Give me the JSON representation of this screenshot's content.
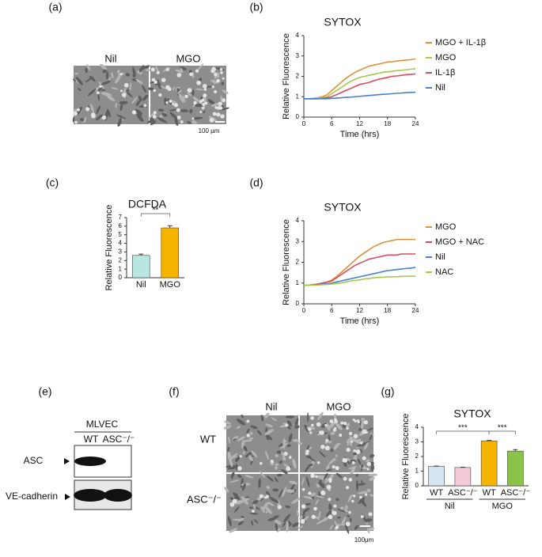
{
  "panel_a": {
    "label": "(a)",
    "columns": [
      "Nil",
      "MGO"
    ],
    "scale_bar": "100 µm"
  },
  "panel_e": {
    "label": "(e)",
    "cell": "MLVEC",
    "lanes": [
      "WT",
      "ASC⁻/⁻"
    ],
    "bands": [
      "ASC",
      "VE-cadherin"
    ]
  },
  "panel_f": {
    "label": "(f)",
    "columns": [
      "Nil",
      "MGO"
    ],
    "rows": [
      "WT",
      "ASC⁻/⁻"
    ],
    "scale_bar": "100μm"
  },
  "chart_data": [
    {
      "type": "line",
      "panel_label": "(b)",
      "title": "SYTOX",
      "xlabel": "Time (hrs)",
      "ylabel": "Relative Fluorescence",
      "x": [
        0,
        1,
        2,
        3,
        4,
        5,
        6,
        7,
        8,
        9,
        10,
        11,
        12,
        13,
        14,
        15,
        16,
        17,
        18,
        19,
        20,
        21,
        22,
        23,
        24
      ],
      "xlim": [
        0,
        24
      ],
      "xticks": [
        0,
        6,
        12,
        18,
        24
      ],
      "ylim": [
        0,
        4
      ],
      "yticks": [
        0,
        1,
        2,
        3,
        4
      ],
      "series": [
        {
          "name": "MGO + IL-1β",
          "color": "#e0903a",
          "values": [
            0.9,
            0.9,
            0.92,
            0.95,
            1.0,
            1.1,
            1.3,
            1.5,
            1.7,
            1.9,
            2.05,
            2.2,
            2.3,
            2.4,
            2.5,
            2.55,
            2.6,
            2.65,
            2.7,
            2.72,
            2.75,
            2.78,
            2.8,
            2.82,
            2.85
          ]
        },
        {
          "name": "MGO",
          "color": "#a6c94a",
          "values": [
            0.9,
            0.9,
            0.9,
            0.92,
            0.95,
            1.0,
            1.15,
            1.3,
            1.45,
            1.6,
            1.75,
            1.85,
            1.95,
            2.0,
            2.05,
            2.1,
            2.15,
            2.2,
            2.22,
            2.25,
            2.28,
            2.3,
            2.32,
            2.35,
            2.38
          ]
        },
        {
          "name": "IL-1β",
          "color": "#d94a5e",
          "values": [
            0.9,
            0.9,
            0.9,
            0.9,
            0.92,
            0.95,
            1.0,
            1.1,
            1.2,
            1.3,
            1.4,
            1.5,
            1.6,
            1.65,
            1.7,
            1.78,
            1.85,
            1.9,
            1.95,
            2.0,
            2.02,
            2.05,
            2.08,
            2.1,
            2.12
          ]
        },
        {
          "name": "Nil",
          "color": "#4a7fc9",
          "values": [
            0.9,
            0.9,
            0.9,
            0.9,
            0.9,
            0.9,
            0.92,
            0.93,
            0.95,
            0.97,
            0.98,
            1.0,
            1.02,
            1.04,
            1.06,
            1.08,
            1.1,
            1.12,
            1.13,
            1.15,
            1.17,
            1.18,
            1.2,
            1.21,
            1.22
          ]
        }
      ]
    },
    {
      "type": "bar",
      "panel_label": "(c)",
      "title": "DCFDA",
      "ylabel": "Relative Fluorescence",
      "categories": [
        "Nil",
        "MGO"
      ],
      "values": [
        2.6,
        5.8
      ],
      "errors": [
        0.15,
        0.25
      ],
      "colors": [
        "#b8e6e1",
        "#f5b400"
      ],
      "ylim": [
        0,
        7
      ],
      "yticks": [
        0,
        1,
        2,
        3,
        4,
        5,
        6,
        7
      ],
      "annotations": [
        "**"
      ]
    },
    {
      "type": "line",
      "panel_label": "(d)",
      "title": "SYTOX",
      "xlabel": "Time (hrs)",
      "ylabel": "Relative Fluorescence",
      "x": [
        0,
        1,
        2,
        3,
        4,
        5,
        6,
        7,
        8,
        9,
        10,
        11,
        12,
        13,
        14,
        15,
        16,
        17,
        18,
        19,
        20,
        21,
        22,
        23,
        24
      ],
      "xlim": [
        0,
        24
      ],
      "xticks": [
        0,
        6,
        12,
        18,
        24
      ],
      "ylim": [
        0,
        4
      ],
      "yticks": [
        0,
        1,
        2,
        3,
        4
      ],
      "series": [
        {
          "name": "MGO",
          "color": "#e0903a",
          "values": [
            0.9,
            0.9,
            0.92,
            0.95,
            1.0,
            1.05,
            1.15,
            1.3,
            1.5,
            1.7,
            1.9,
            2.1,
            2.3,
            2.45,
            2.6,
            2.75,
            2.85,
            2.95,
            3.0,
            3.05,
            3.1,
            3.1,
            3.1,
            3.1,
            3.1
          ]
        },
        {
          "name": "MGO + NAC",
          "color": "#d94a5e",
          "values": [
            0.9,
            0.9,
            0.92,
            0.95,
            1.0,
            1.05,
            1.1,
            1.25,
            1.4,
            1.55,
            1.7,
            1.85,
            1.95,
            2.05,
            2.15,
            2.2,
            2.25,
            2.3,
            2.35,
            2.35,
            2.35,
            2.4,
            2.4,
            2.4,
            2.4
          ]
        },
        {
          "name": "Nil",
          "color": "#4a7fc9",
          "values": [
            0.9,
            0.9,
            0.9,
            0.92,
            0.95,
            0.97,
            1.0,
            1.05,
            1.1,
            1.15,
            1.2,
            1.25,
            1.3,
            1.35,
            1.4,
            1.45,
            1.5,
            1.55,
            1.6,
            1.62,
            1.65,
            1.68,
            1.7,
            1.72,
            1.75
          ]
        },
        {
          "name": "NAC",
          "color": "#a6c94a",
          "values": [
            0.9,
            0.9,
            0.9,
            0.9,
            0.92,
            0.93,
            0.95,
            0.98,
            1.0,
            1.05,
            1.1,
            1.12,
            1.15,
            1.2,
            1.22,
            1.25,
            1.27,
            1.28,
            1.3,
            1.3,
            1.3,
            1.32,
            1.32,
            1.33,
            1.33
          ]
        }
      ]
    },
    {
      "type": "bar",
      "panel_label": "(g)",
      "title": "SYTOX",
      "ylabel": "Relative Fluorescence",
      "categories": [
        "WT",
        "ASC⁻/⁻",
        "WT",
        "ASC⁻/⁻"
      ],
      "groups": [
        "Nil",
        "MGO"
      ],
      "values": [
        1.33,
        1.25,
        3.07,
        2.37
      ],
      "errors": [
        0.02,
        0.02,
        0.03,
        0.1
      ],
      "colors": [
        "#d6e3f3",
        "#f6c9d8",
        "#f5b400",
        "#8bc34a"
      ],
      "ylim": [
        0,
        4
      ],
      "yticks": [
        0,
        1,
        2,
        3,
        4
      ],
      "annotations": [
        "***",
        "***"
      ]
    }
  ]
}
